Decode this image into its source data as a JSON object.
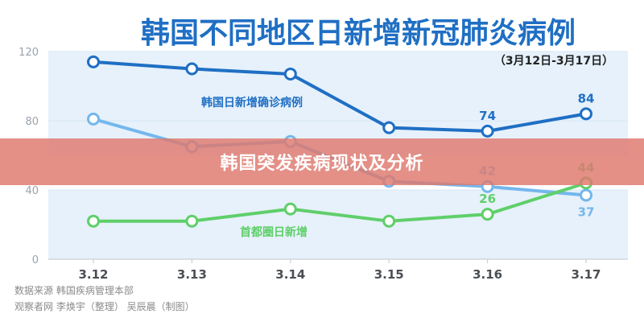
{
  "chart_data": {
    "type": "line",
    "title": "韩国不同地区日新增新冠肺炎病例",
    "subtitle": "（3月12日-3月17日）",
    "categories": [
      "3.12",
      "3.13",
      "3.14",
      "3.15",
      "3.16",
      "3.17"
    ],
    "ylim": [
      0,
      120
    ],
    "yticks": [
      0,
      40,
      80,
      120
    ],
    "grid": true,
    "series": [
      {
        "name": "韩国日新增确诊病例",
        "color": "#1f6fc4",
        "values": [
          114,
          110,
          107,
          76,
          74,
          84
        ],
        "data_labels": [
          "",
          "",
          "",
          "",
          "74",
          "84"
        ]
      },
      {
        "name": "",
        "color": "#74b7ec",
        "values": [
          81,
          65,
          68,
          45,
          42,
          37
        ],
        "data_labels": [
          "",
          "",
          "",
          "",
          "42",
          "37"
        ]
      },
      {
        "name": "首都圈日新增",
        "color": "#5fcf6a",
        "values": [
          22,
          22,
          29,
          22,
          26,
          44
        ],
        "data_labels": [
          "",
          "",
          "",
          "",
          "26",
          "44"
        ]
      }
    ]
  },
  "source": {
    "line1": "数据来源 韩国疾病管理本部",
    "line2": "观察者网 李焕宇（整理） 吴辰晨（制图）"
  },
  "banner": {
    "text": "韩国突发疾病现状及分析"
  }
}
